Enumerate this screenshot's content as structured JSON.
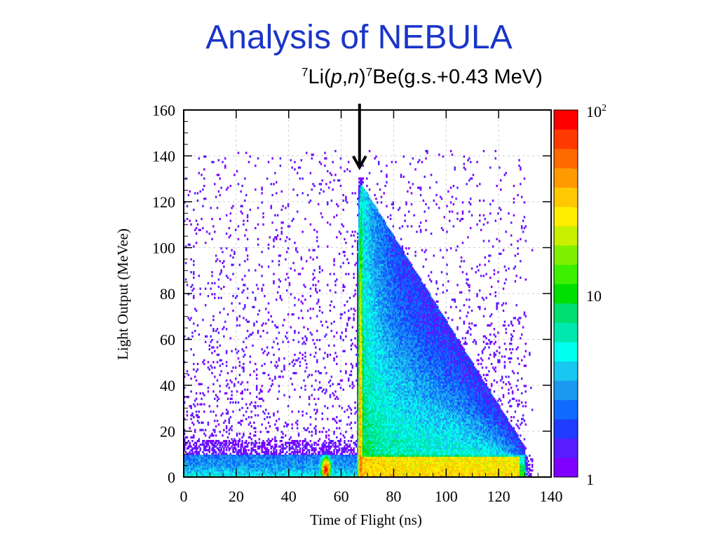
{
  "slide": {
    "title": "Analysis of NEBULA",
    "annotation": {
      "mass_number_1": "7",
      "element_1": "Li(",
      "particle_1": "p",
      "comma": ",",
      "particle_2": "n",
      "close": ")",
      "mass_number_2": "7",
      "element_2": "Be(g.s.+0.43 MeV)"
    }
  },
  "chart_data": {
    "type": "heatmap",
    "title": "",
    "xlabel": "Time of Flight (ns)",
    "ylabel": "Light Output (MeVee)",
    "xlim": [
      0,
      140
    ],
    "ylim": [
      0,
      160
    ],
    "x_ticks": [
      "0",
      "20",
      "40",
      "60",
      "80",
      "100",
      "120",
      "140"
    ],
    "y_ticks": [
      "0",
      "20",
      "40",
      "60",
      "80",
      "100",
      "120",
      "140",
      "160"
    ],
    "grid": true,
    "color_scale": {
      "type": "log",
      "range": [
        1,
        100
      ],
      "tick_labels": [
        "1",
        "10",
        "10"
      ],
      "top_label_base": "10",
      "top_label_exponent": "2",
      "colors": [
        "#7f00ff",
        "#5a1cff",
        "#1f3cff",
        "#0f6bff",
        "#1b99f0",
        "#19c8f0",
        "#00ffee",
        "#00e8b0",
        "#00e070",
        "#00e000",
        "#3cf000",
        "#80f000",
        "#c8f000",
        "#ffee00",
        "#ffc800",
        "#ff9a00",
        "#ff6a00",
        "#ff3a00",
        "#ff0000"
      ]
    },
    "features": {
      "gamma_peak_tof_ns": 54,
      "neutron_peak_tof_ns": 67,
      "neutron_peak_max_light_mevee": 128,
      "neutron_band_end_tof_ns": 130,
      "arrow_target_tof_ns": 67,
      "arrow_target_light_mevee": 135
    }
  }
}
